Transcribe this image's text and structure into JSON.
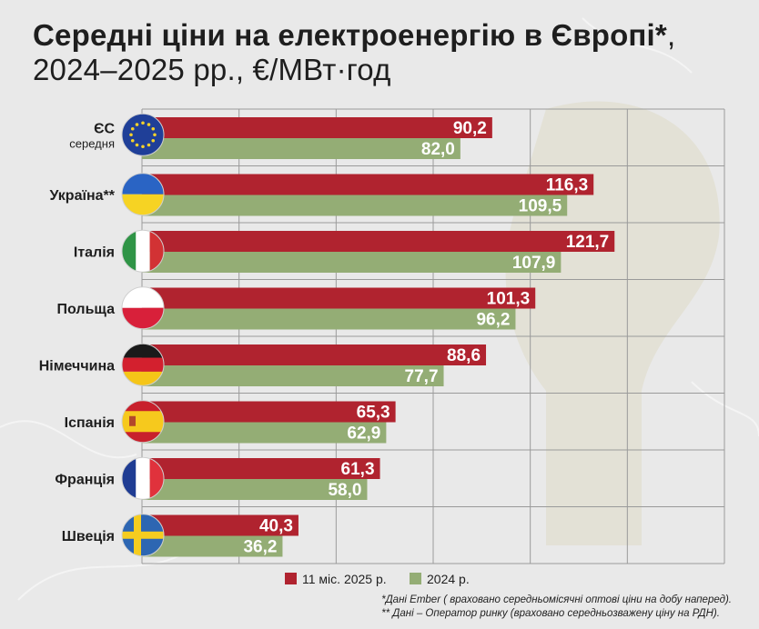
{
  "title": {
    "bold": "Середні ціни на електроенергію в Європі*",
    "rest": ", 2024–2025 рр., €/МВт·год"
  },
  "colors": {
    "series_2025": "#b0232f",
    "series_2024": "#94ad75",
    "grid": "#9a9a9a",
    "label": "#1e1e1e"
  },
  "chart_data": {
    "type": "bar",
    "orientation": "horizontal",
    "xlim": [
      0,
      150
    ],
    "grid": true,
    "legend_position": "bottom-center",
    "categories": [
      {
        "label": "ЄС",
        "sublabel": "середня",
        "flag": "eu-flag-icon"
      },
      {
        "label": "Україна**",
        "sublabel": "",
        "flag": "ukraine-flag-icon"
      },
      {
        "label": "Італія",
        "sublabel": "",
        "flag": "italy-flag-icon"
      },
      {
        "label": "Польща",
        "sublabel": "",
        "flag": "poland-flag-icon"
      },
      {
        "label": "Німеччина",
        "sublabel": "",
        "flag": "germany-flag-icon"
      },
      {
        "label": "Іспанія",
        "sublabel": "",
        "flag": "spain-flag-icon"
      },
      {
        "label": "Франція",
        "sublabel": "",
        "flag": "france-flag-icon"
      },
      {
        "label": "Швеція",
        "sublabel": "",
        "flag": "sweden-flag-icon"
      }
    ],
    "series": [
      {
        "name": "11 міс. 2025 р.",
        "values": [
          90.2,
          116.3,
          121.7,
          101.3,
          88.6,
          65.3,
          61.3,
          40.3
        ],
        "labels": [
          "90,2",
          "116,3",
          "121,7",
          "101,3",
          "88,6",
          "65,3",
          "61,3",
          "40,3"
        ]
      },
      {
        "name": "2024 р.",
        "values": [
          82.0,
          109.5,
          107.9,
          96.2,
          77.7,
          62.9,
          58.0,
          36.2
        ],
        "labels": [
          "82,0",
          "109,5",
          "107,9",
          "96,2",
          "77,7",
          "62,9",
          "58,0",
          "36,2"
        ]
      }
    ]
  },
  "footnotes": {
    "note1": "*Дані Ember ( враховано середньомісячні оптові ціни на добу наперед).",
    "note2": "** Дані – Оператор ринку (враховано середньозважену ціну на РДН)."
  }
}
